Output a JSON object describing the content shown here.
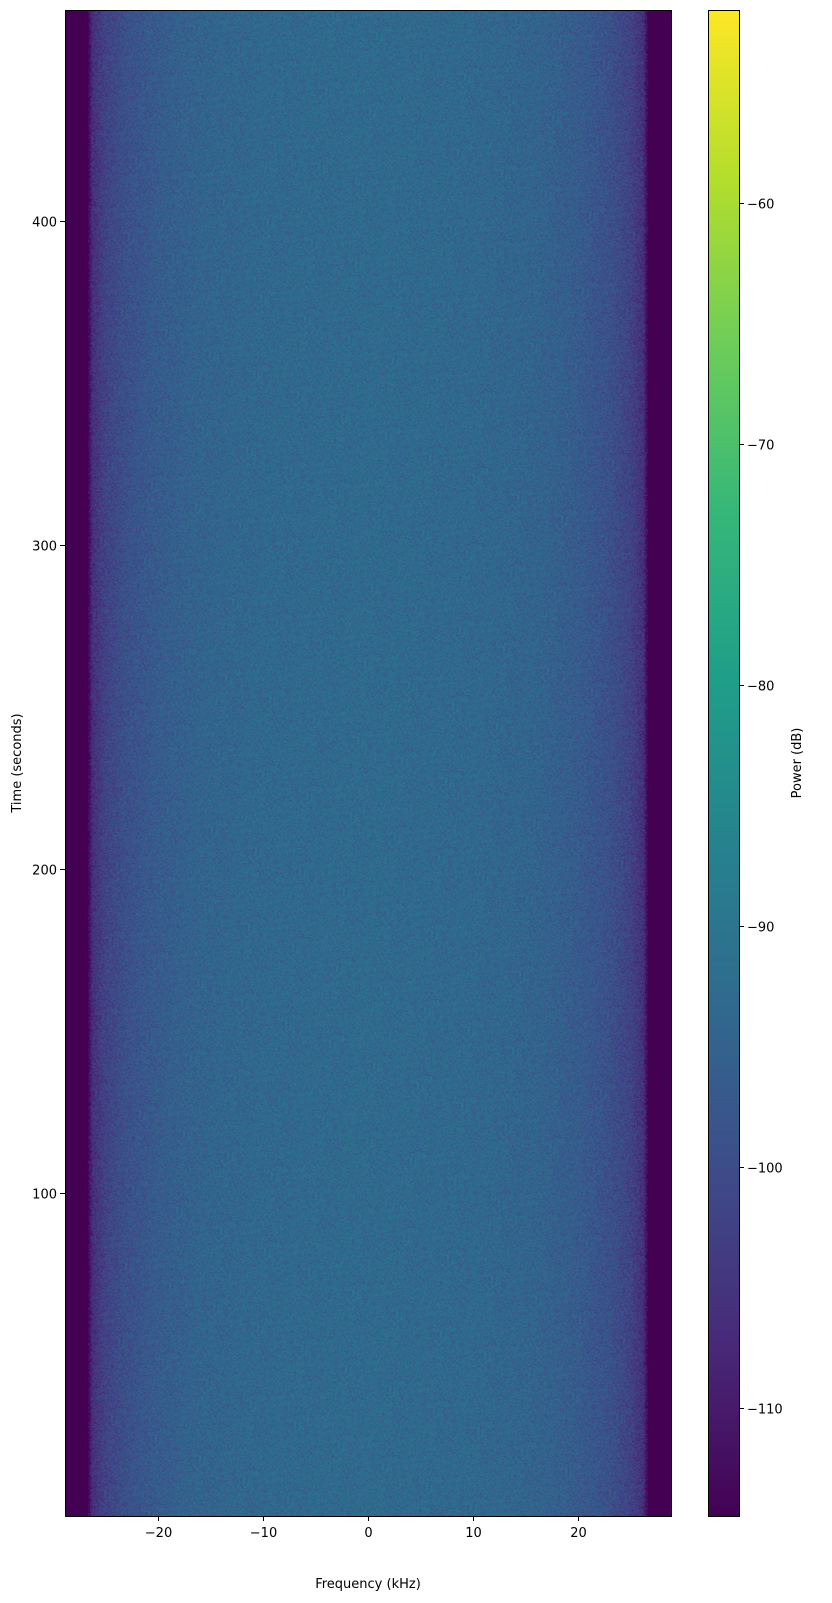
{
  "chart_data": {
    "type": "heatmap",
    "title": "",
    "xlabel": "Frequency (kHz)",
    "ylabel": "Time (seconds)",
    "colorbar_label": "Power (dB)",
    "colormap": "viridis",
    "xlim": [
      -28.8,
      28.8
    ],
    "ylim": [
      0.3,
      465
    ],
    "clim": [
      -114.5,
      -52
    ],
    "xticks": [
      -20,
      -10,
      0,
      10,
      20
    ],
    "xtick_labels": [
      "−20",
      "−10",
      "0",
      "10",
      "20"
    ],
    "yticks": [
      100,
      200,
      300,
      400
    ],
    "ytick_labels": [
      "100",
      "200",
      "300",
      "400"
    ],
    "colorbar_ticks": [
      -60,
      -70,
      -80,
      -90,
      -100,
      -110
    ],
    "colorbar_tick_labels": [
      "−60",
      "−70",
      "−80",
      "−90",
      "−100",
      "−110"
    ],
    "grid": false,
    "mean_power_profile": {
      "frequency_khz": [
        -28.8,
        -26.6,
        -26.2,
        -25,
        -23,
        -20,
        -16,
        -10,
        0,
        10,
        16,
        20,
        23,
        25,
        26.2,
        26.6,
        28.8
      ],
      "power_db": [
        -114.5,
        -114.5,
        -106,
        -102,
        -99,
        -96.5,
        -94.5,
        -93.5,
        -93,
        -93.5,
        -94.5,
        -96.5,
        -99,
        -102,
        -106,
        -114.5,
        -114.5
      ]
    },
    "noise_std_db": 2.5
  }
}
